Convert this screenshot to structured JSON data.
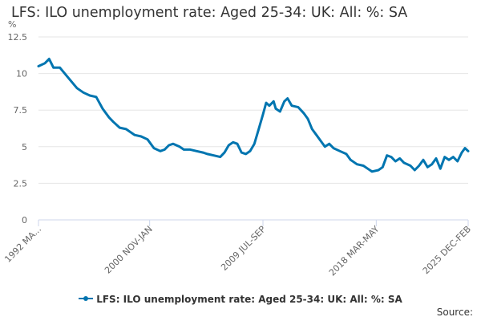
{
  "title": "LFS: ILO unemployment rate: Aged 25-34: UK: All: %: SA",
  "source_label": "Source:",
  "colors": {
    "series": "#0075b0",
    "grid": "#e6e6e6",
    "axis": "#ccd6eb"
  },
  "chart_data": {
    "type": "line",
    "title": "LFS: ILO unemployment rate: Aged 25-34: UK: All: %: SA",
    "y_unit": "%",
    "ylim": [
      0,
      12.5
    ],
    "y_ticks": [
      0,
      2.5,
      5,
      7.5,
      10,
      12.5
    ],
    "y_tick_labels": [
      "0",
      "2.5",
      "5",
      "7.5",
      "10",
      "12.5"
    ],
    "x_tick_labels": [
      {
        "index": 0,
        "label": "1992 MA..."
      },
      {
        "index": 104,
        "label": "2000 NOV-JAN"
      },
      {
        "index": 210,
        "label": "2009 JUL-SEP"
      },
      {
        "index": 316,
        "label": "2018 MAR-MAY"
      },
      {
        "index": 402,
        "label": "2025 DEC-FEB"
      }
    ],
    "grid": true,
    "legend_position": "bottom",
    "series": [
      {
        "name": "LFS: ILO unemployment rate: Aged 25-34: UK: All: %: SA",
        "points": [
          [
            0,
            10.5
          ],
          [
            6,
            10.7
          ],
          [
            10,
            11.0
          ],
          [
            14,
            10.4
          ],
          [
            20,
            10.4
          ],
          [
            28,
            9.7
          ],
          [
            36,
            9.0
          ],
          [
            42,
            8.7
          ],
          [
            48,
            8.5
          ],
          [
            54,
            8.4
          ],
          [
            60,
            7.6
          ],
          [
            66,
            7.0
          ],
          [
            70,
            6.7
          ],
          [
            76,
            6.3
          ],
          [
            82,
            6.2
          ],
          [
            90,
            5.8
          ],
          [
            96,
            5.7
          ],
          [
            102,
            5.5
          ],
          [
            108,
            4.9
          ],
          [
            114,
            4.7
          ],
          [
            118,
            4.8
          ],
          [
            122,
            5.1
          ],
          [
            126,
            5.2
          ],
          [
            132,
            5.0
          ],
          [
            136,
            4.8
          ],
          [
            142,
            4.8
          ],
          [
            148,
            4.7
          ],
          [
            154,
            4.6
          ],
          [
            158,
            4.5
          ],
          [
            164,
            4.4
          ],
          [
            170,
            4.3
          ],
          [
            174,
            4.6
          ],
          [
            178,
            5.1
          ],
          [
            182,
            5.3
          ],
          [
            186,
            5.2
          ],
          [
            190,
            4.6
          ],
          [
            194,
            4.5
          ],
          [
            198,
            4.7
          ],
          [
            202,
            5.2
          ],
          [
            206,
            6.2
          ],
          [
            210,
            7.2
          ],
          [
            213,
            8.0
          ],
          [
            216,
            7.8
          ],
          [
            220,
            8.1
          ],
          [
            222,
            7.6
          ],
          [
            226,
            7.4
          ],
          [
            230,
            8.1
          ],
          [
            233,
            8.3
          ],
          [
            237,
            7.8
          ],
          [
            243,
            7.7
          ],
          [
            248,
            7.3
          ],
          [
            252,
            6.9
          ],
          [
            256,
            6.2
          ],
          [
            260,
            5.8
          ],
          [
            264,
            5.4
          ],
          [
            268,
            5.0
          ],
          [
            272,
            5.2
          ],
          [
            276,
            4.9
          ],
          [
            282,
            4.7
          ],
          [
            288,
            4.5
          ],
          [
            292,
            4.1
          ],
          [
            298,
            3.8
          ],
          [
            304,
            3.7
          ],
          [
            308,
            3.5
          ],
          [
            312,
            3.3
          ],
          [
            318,
            3.4
          ],
          [
            322,
            3.6
          ],
          [
            326,
            4.4
          ],
          [
            330,
            4.3
          ],
          [
            334,
            4.0
          ],
          [
            338,
            4.2
          ],
          [
            342,
            3.9
          ],
          [
            348,
            3.7
          ],
          [
            352,
            3.4
          ],
          [
            356,
            3.7
          ],
          [
            360,
            4.1
          ],
          [
            364,
            3.6
          ],
          [
            368,
            3.8
          ],
          [
            372,
            4.2
          ],
          [
            376,
            3.5
          ],
          [
            380,
            4.3
          ],
          [
            384,
            4.1
          ],
          [
            388,
            4.3
          ],
          [
            392,
            4.0
          ],
          [
            396,
            4.6
          ],
          [
            399,
            4.9
          ],
          [
            402,
            4.7
          ]
        ]
      }
    ]
  }
}
